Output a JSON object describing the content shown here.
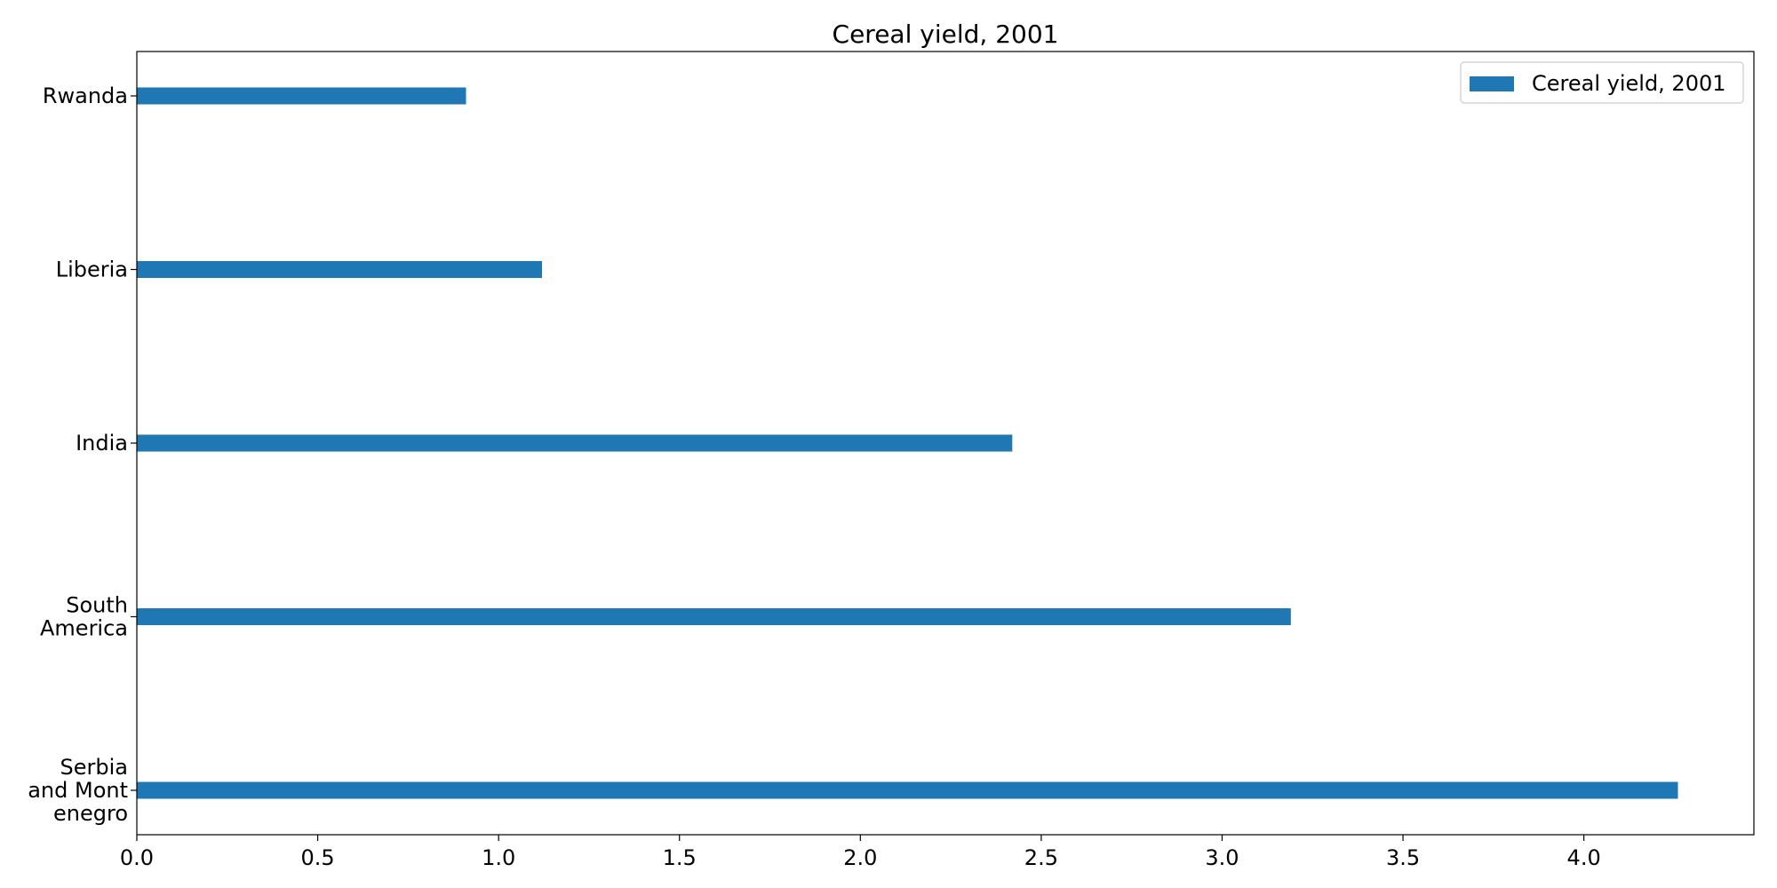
{
  "chart_data": {
    "type": "bar",
    "orientation": "horizontal",
    "title": "Cereal yield, 2001",
    "xlabel": "",
    "ylabel": "",
    "categories": [
      "Rwanda",
      "Liberia",
      "India",
      "South America",
      "Serbia and Montenegro"
    ],
    "category_label_lines": [
      [
        "Rwanda"
      ],
      [
        "Liberia"
      ],
      [
        "India"
      ],
      [
        "South",
        "America"
      ],
      [
        "Serbia",
        "and Mont",
        "enegro"
      ]
    ],
    "series": [
      {
        "name": "Cereal yield, 2001",
        "values": [
          0.91,
          1.12,
          2.42,
          3.19,
          4.26
        ],
        "color": "#1f77b4"
      }
    ],
    "xlim": [
      0,
      4.47
    ],
    "xticks": [
      0.0,
      0.5,
      1.0,
      1.5,
      2.0,
      2.5,
      3.0,
      3.5,
      4.0
    ],
    "xtick_labels": [
      "0.0",
      "0.5",
      "1.0",
      "1.5",
      "2.0",
      "2.5",
      "3.0",
      "3.5",
      "4.0"
    ],
    "grid": false,
    "legend_placement": "top-right"
  }
}
